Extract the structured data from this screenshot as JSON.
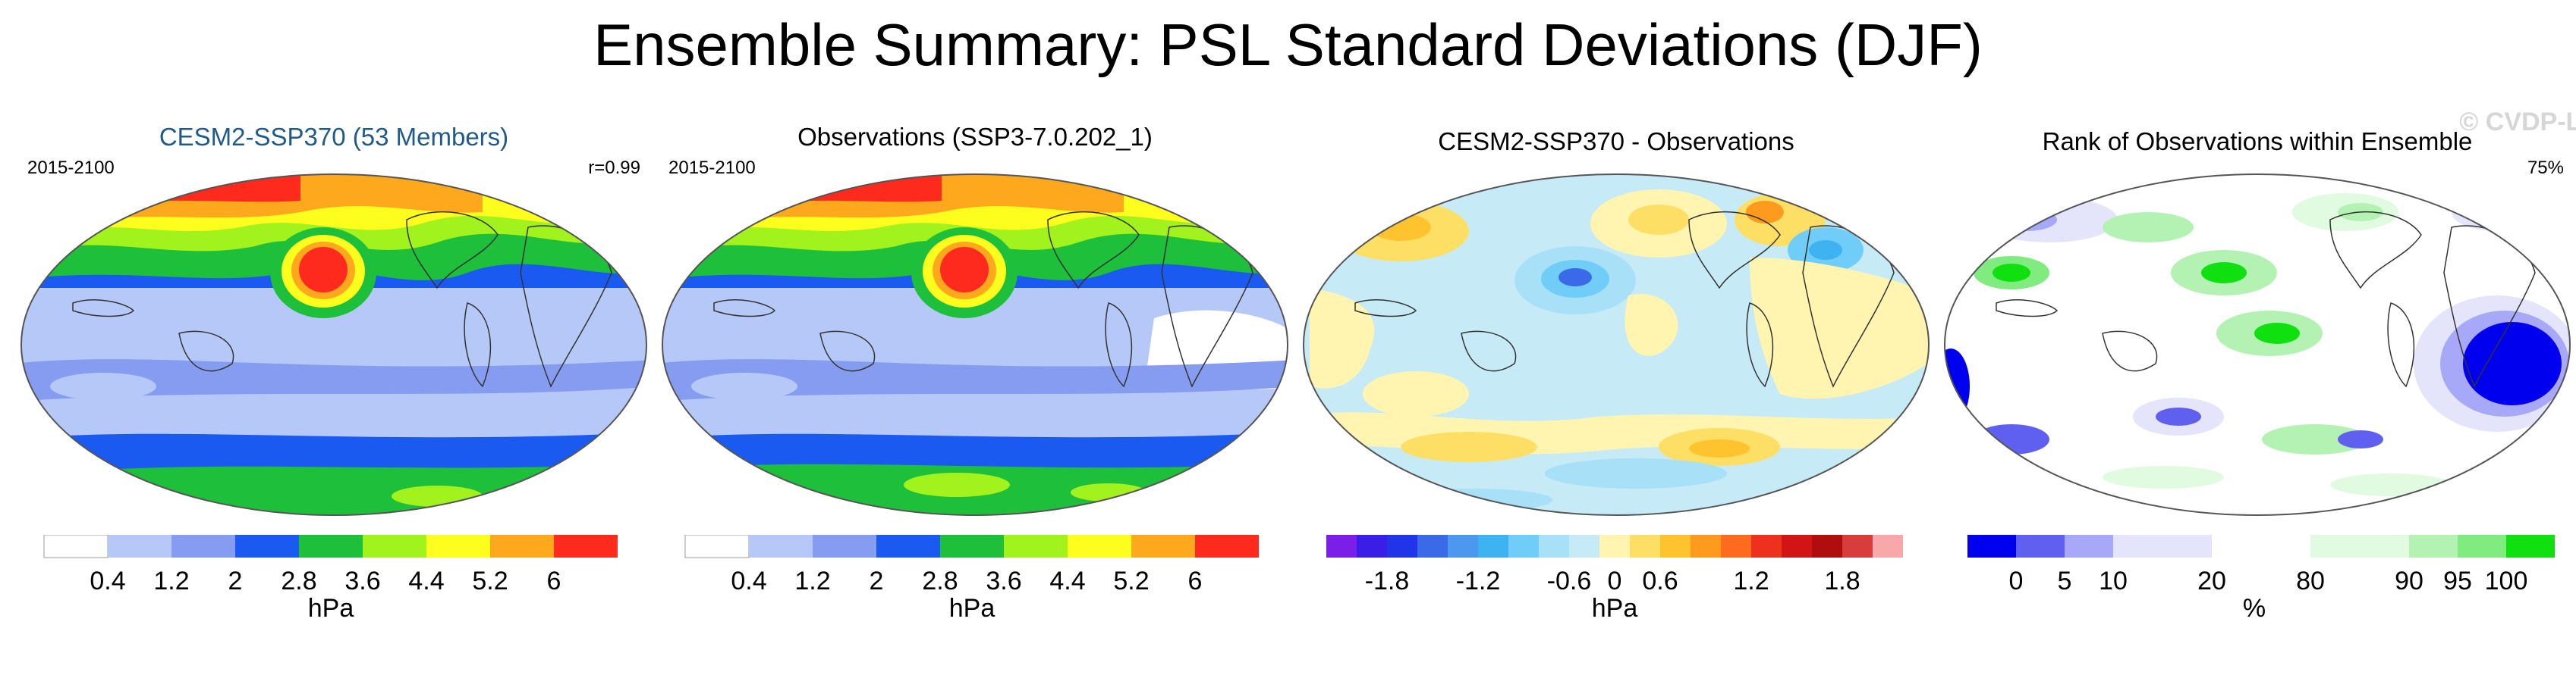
{
  "title": "Ensemble Summary: PSL Standard Deviations (DJF)",
  "watermark": "© CVDP-LE",
  "colors": {
    "sd_scale": [
      "#ffffff",
      "#b5c8f7",
      "#869cf0",
      "#1a5af0",
      "#1ebf3a",
      "#a2f21e",
      "#fefe1e",
      "#fea81e",
      "#fe2a1e"
    ],
    "diff_scale": [
      "#7a1ee8",
      "#3a1ee8",
      "#2234e8",
      "#3a6ae8",
      "#4c98ee",
      "#3fb2f2",
      "#70cdf7",
      "#a7e0f7",
      "#c6ebf7",
      "#fff5b0",
      "#fedf65",
      "#fec32e",
      "#fe9b1e",
      "#fe6a1e",
      "#ee301e",
      "#d21414",
      "#b00e0e",
      "#d83c3c",
      "#f8a8a8"
    ],
    "rank_scale": [
      "#0000ee",
      "#6060f0",
      "#a8a8f8",
      "#e4e4fb",
      "#ffffff",
      "#e0fbe0",
      "#b4f2b4",
      "#80ec80",
      "#10e010"
    ]
  },
  "panels": [
    {
      "name": "cesm",
      "title": "CESM2-SSP370 (53 Members)",
      "left_label": "2015-2100",
      "right_label": "r=0.99",
      "colorbar": {
        "ticks": [
          "0.4",
          "1.2",
          "2",
          "2.8",
          "3.6",
          "4.4",
          "5.2",
          "6"
        ],
        "unit": "hPa"
      }
    },
    {
      "name": "obs",
      "title": "Observations (SSP3-7.0.202_1)",
      "left_label": "2015-2100",
      "colorbar": {
        "ticks": [
          "0.4",
          "1.2",
          "2",
          "2.8",
          "3.6",
          "4.4",
          "5.2",
          "6"
        ],
        "unit": "hPa"
      }
    },
    {
      "name": "diff",
      "title": "CESM2-SSP370 - Observations",
      "colorbar": {
        "ticks": [
          "-1.8",
          "-1.2",
          "-0.6",
          "0",
          "0.6",
          "1.2",
          "1.8"
        ],
        "unit": "hPa"
      }
    },
    {
      "name": "rank",
      "title": "Rank of Observations within Ensemble",
      "right_label": "75%",
      "colorbar": {
        "ticks": [
          "0",
          "5",
          "10",
          "20",
          "80",
          "90",
          "95",
          "100"
        ],
        "unit": "%"
      }
    }
  ]
}
